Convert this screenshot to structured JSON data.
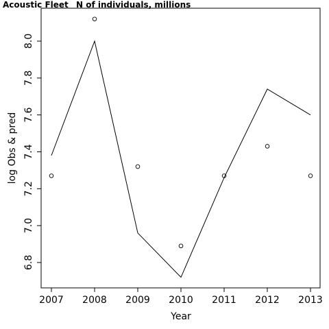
{
  "chart_data": {
    "type": "scatter",
    "title": "Acoustic Fleet",
    "subtitle": "N of individuals, millions",
    "xlabel": "Year",
    "ylabel": "log Obs & pred",
    "x": [
      2007,
      2008,
      2009,
      2010,
      2011,
      2012,
      2013
    ],
    "xticks": [
      "2007",
      "2008",
      "2009",
      "2010",
      "2011",
      "2012",
      "2013"
    ],
    "yticks": [
      "6.8",
      "7.0",
      "7.2",
      "7.4",
      "7.6",
      "7.8",
      "8.0"
    ],
    "xlim": [
      2006.8,
      2013.25
    ],
    "ylim": [
      6.66,
      8.2
    ],
    "grid": false,
    "series": [
      {
        "role": "observed",
        "style": "points",
        "values": [
          7.27,
          8.12,
          7.32,
          6.89,
          7.27,
          7.43,
          7.27
        ]
      },
      {
        "role": "predicted",
        "style": "line",
        "values": [
          7.38,
          8.0,
          6.96,
          6.72,
          7.26,
          7.74,
          7.6
        ]
      }
    ]
  }
}
